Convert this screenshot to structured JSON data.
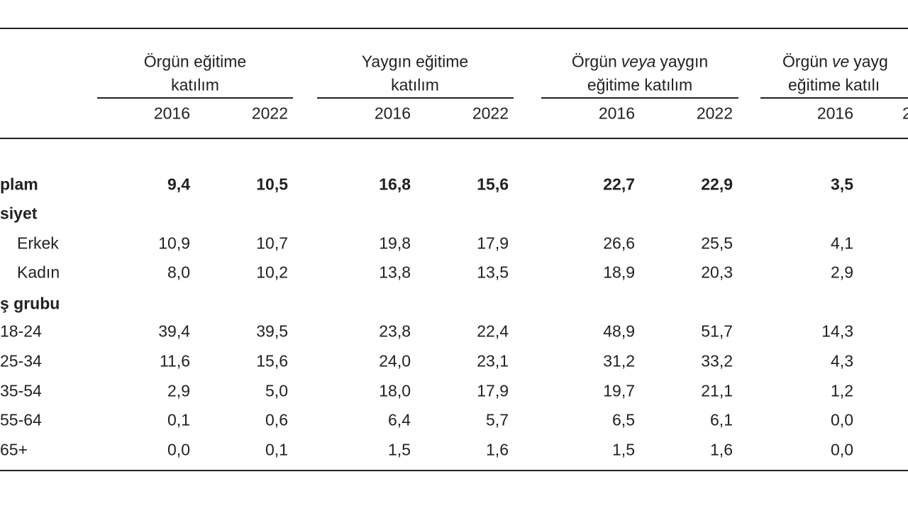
{
  "table": {
    "groups": [
      {
        "title": [
          "Örgün eğitime"
        ],
        "title_line2": "katılım",
        "years": [
          "2016",
          "2022"
        ]
      },
      {
        "title": [
          "Yaygın eğitime"
        ],
        "title_line2": "katılım",
        "years": [
          "2016",
          "2022"
        ]
      },
      {
        "title": [
          "Örgün",
          "veya",
          "yaygın"
        ],
        "title_line2": "eğitime katılım",
        "years": [
          "2016",
          "2022"
        ]
      },
      {
        "title": [
          "Örgün",
          "ve",
          "yayg"
        ],
        "title_line2": "eğitime katılı",
        "years": [
          "2016",
          "2"
        ]
      }
    ],
    "rows": [
      {
        "label": "plam",
        "values": [
          "9,4",
          "10,5",
          "16,8",
          "15,6",
          "22,7",
          "22,9",
          "3,5"
        ]
      },
      {
        "label": "siyet"
      },
      {
        "label": "Erkek",
        "values": [
          "10,9",
          "10,7",
          "19,8",
          "17,9",
          "26,6",
          "25,5",
          "4,1"
        ]
      },
      {
        "label": "Kadın",
        "values": [
          "8,0",
          "10,2",
          "13,8",
          "13,5",
          "18,9",
          "20,3",
          "2,9"
        ]
      },
      {
        "label": "ş grubu"
      },
      {
        "label": "18-24",
        "values": [
          "39,4",
          "39,5",
          "23,8",
          "22,4",
          "48,9",
          "51,7",
          "14,3"
        ]
      },
      {
        "label": "25-34",
        "values": [
          "11,6",
          "15,6",
          "24,0",
          "23,1",
          "31,2",
          "33,2",
          "4,3"
        ]
      },
      {
        "label": "35-54",
        "values": [
          "2,9",
          "5,0",
          "18,0",
          "17,9",
          "19,7",
          "21,1",
          "1,2"
        ]
      },
      {
        "label": "55-64",
        "values": [
          "0,1",
          "0,6",
          "6,4",
          "5,7",
          "6,5",
          "6,1",
          "0,0"
        ]
      },
      {
        "label": "65+",
        "values": [
          "0,0",
          "0,1",
          "1,5",
          "1,6",
          "1,5",
          "1,6",
          "0,0"
        ]
      }
    ]
  }
}
